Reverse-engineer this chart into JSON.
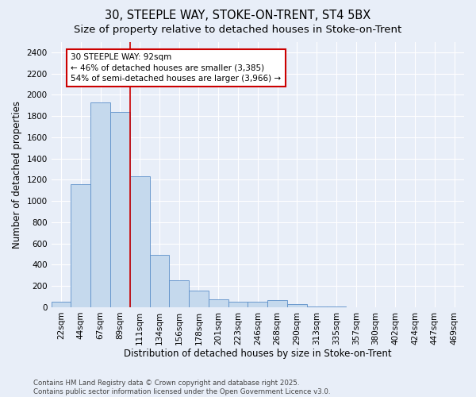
{
  "title1": "30, STEEPLE WAY, STOKE-ON-TRENT, ST4 5BX",
  "title2": "Size of property relative to detached houses in Stoke-on-Trent",
  "xlabel": "Distribution of detached houses by size in Stoke-on-Trent",
  "ylabel": "Number of detached properties",
  "categories": [
    "22sqm",
    "44sqm",
    "67sqm",
    "89sqm",
    "111sqm",
    "134sqm",
    "156sqm",
    "178sqm",
    "201sqm",
    "223sqm",
    "246sqm",
    "268sqm",
    "290sqm",
    "313sqm",
    "335sqm",
    "357sqm",
    "380sqm",
    "402sqm",
    "424sqm",
    "447sqm",
    "469sqm"
  ],
  "values": [
    50,
    1160,
    1930,
    1840,
    1230,
    490,
    255,
    155,
    75,
    50,
    50,
    70,
    30,
    10,
    5,
    3,
    2,
    1,
    1,
    0,
    0
  ],
  "bar_color": "#c5d9ed",
  "bar_edge_color": "#5b8fc9",
  "background_color": "#e8eef8",
  "grid_color": "#ffffff",
  "annotation_text": "30 STEEPLE WAY: 92sqm\n← 46% of detached houses are smaller (3,385)\n54% of semi-detached houses are larger (3,966) →",
  "annotation_box_color": "#ffffff",
  "annotation_box_edge": "#cc0000",
  "vline_x": 3.5,
  "vline_color": "#cc0000",
  "ylim": [
    0,
    2500
  ],
  "yticks": [
    0,
    200,
    400,
    600,
    800,
    1000,
    1200,
    1400,
    1600,
    1800,
    2000,
    2200,
    2400
  ],
  "footer1": "Contains HM Land Registry data © Crown copyright and database right 2025.",
  "footer2": "Contains public sector information licensed under the Open Government Licence v3.0.",
  "title_fontsize": 10.5,
  "subtitle_fontsize": 9.5,
  "tick_fontsize": 7.5,
  "label_fontsize": 8.5,
  "annotation_fontsize": 7.5
}
